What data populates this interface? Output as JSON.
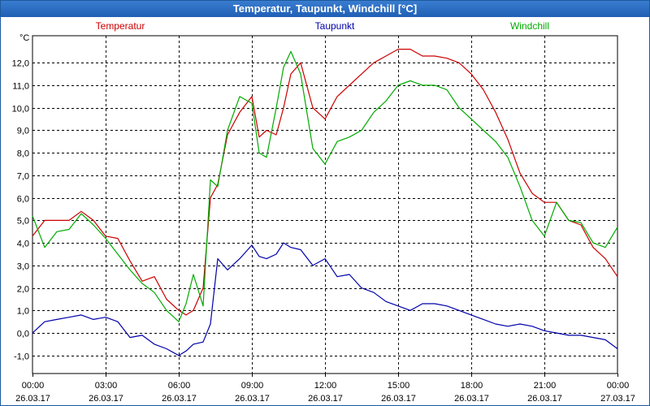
{
  "window": {
    "title": "Temperatur, Taupunkt, Windchill [°C]"
  },
  "chart_data": {
    "type": "line",
    "title": "Temperatur, Taupunkt, Windchill [°C]",
    "ylabel": "°C",
    "ylim": [
      -1.8,
      13.2
    ],
    "xlim": [
      0,
      24
    ],
    "grid": true,
    "y_ticks": [
      {
        "value": -1.0,
        "label": "-1,0"
      },
      {
        "value": 0.0,
        "label": "0,0"
      },
      {
        "value": 1.0,
        "label": "1,0"
      },
      {
        "value": 2.0,
        "label": "2,0"
      },
      {
        "value": 3.0,
        "label": "3,0"
      },
      {
        "value": 4.0,
        "label": "4,0"
      },
      {
        "value": 5.0,
        "label": "5,0"
      },
      {
        "value": 6.0,
        "label": "6,0"
      },
      {
        "value": 7.0,
        "label": "7,0"
      },
      {
        "value": 8.0,
        "label": "8,0"
      },
      {
        "value": 9.0,
        "label": "9,0"
      },
      {
        "value": 10.0,
        "label": "10,0"
      },
      {
        "value": 11.0,
        "label": "11,0"
      },
      {
        "value": 12.0,
        "label": "12,0"
      }
    ],
    "x_ticks": [
      {
        "value": 0,
        "time": "00:00",
        "date": "26.03.17"
      },
      {
        "value": 3,
        "time": "03:00",
        "date": "26.03.17"
      },
      {
        "value": 6,
        "time": "06:00",
        "date": "26.03.17"
      },
      {
        "value": 9,
        "time": "09:00",
        "date": "26.03.17"
      },
      {
        "value": 12,
        "time": "12:00",
        "date": "26.03.17"
      },
      {
        "value": 15,
        "time": "15:00",
        "date": "26.03.17"
      },
      {
        "value": 18,
        "time": "18:00",
        "date": "26.03.17"
      },
      {
        "value": 21,
        "time": "21:00",
        "date": "26.03.17"
      },
      {
        "value": 24,
        "time": "00:00",
        "date": "27.03.17"
      }
    ],
    "series": [
      {
        "name": "Temperatur",
        "color": "#cc0000",
        "x": [
          0,
          0.5,
          1,
          1.5,
          2,
          2.5,
          3,
          3.5,
          4,
          4.5,
          5,
          5.5,
          6,
          6.3,
          6.6,
          7,
          7.3,
          7.6,
          8,
          8.5,
          9,
          9.3,
          9.6,
          10,
          10.3,
          10.6,
          11,
          11.5,
          12,
          12.5,
          13,
          13.5,
          14,
          14.5,
          15,
          15.5,
          16,
          16.5,
          17,
          17.5,
          18,
          18.5,
          19,
          19.5,
          20,
          20.5,
          21,
          21.5,
          22,
          22.5,
          23,
          23.5,
          24
        ],
        "values": [
          4.3,
          5.0,
          5.0,
          5.0,
          5.4,
          5.0,
          4.3,
          4.2,
          3.2,
          2.3,
          2.5,
          1.5,
          1.0,
          0.8,
          1.0,
          2.0,
          6.0,
          6.6,
          8.8,
          9.8,
          10.5,
          8.7,
          9.0,
          8.8,
          10.0,
          11.5,
          12.0,
          10.0,
          9.5,
          10.5,
          11.0,
          11.5,
          12.0,
          12.3,
          12.6,
          12.6,
          12.3,
          12.3,
          12.2,
          12.0,
          11.5,
          10.8,
          9.8,
          8.6,
          7.1,
          6.2,
          5.8,
          5.8,
          5.0,
          4.8,
          3.8,
          3.3,
          2.5
        ]
      },
      {
        "name": "Taupunkt",
        "color": "#0000aa",
        "x": [
          0,
          0.5,
          1,
          1.5,
          2,
          2.5,
          3,
          3.5,
          4,
          4.5,
          5,
          5.5,
          6,
          6.3,
          6.6,
          7,
          7.3,
          7.6,
          8,
          8.5,
          9,
          9.3,
          9.6,
          10,
          10.3,
          10.6,
          11,
          11.5,
          12,
          12.5,
          13,
          13.5,
          14,
          14.5,
          15,
          15.5,
          16,
          16.5,
          17,
          17.5,
          18,
          18.5,
          19,
          19.5,
          20,
          20.5,
          21,
          21.5,
          22,
          22.5,
          23,
          23.5,
          24
        ],
        "values": [
          0.0,
          0.5,
          0.6,
          0.7,
          0.8,
          0.6,
          0.7,
          0.5,
          -0.2,
          -0.1,
          -0.5,
          -0.7,
          -1.0,
          -0.8,
          -0.5,
          -0.4,
          0.4,
          3.3,
          2.8,
          3.3,
          3.9,
          3.4,
          3.3,
          3.5,
          4.0,
          3.8,
          3.7,
          3.0,
          3.3,
          2.5,
          2.6,
          2.0,
          1.8,
          1.4,
          1.2,
          1.0,
          1.3,
          1.3,
          1.2,
          1.0,
          0.8,
          0.6,
          0.4,
          0.3,
          0.4,
          0.3,
          0.1,
          0.0,
          -0.1,
          -0.1,
          -0.2,
          -0.3,
          -0.7
        ]
      },
      {
        "name": "Windchill",
        "color": "#00aa00",
        "x": [
          0,
          0.5,
          1,
          1.5,
          2,
          2.5,
          3,
          3.5,
          4,
          4.5,
          5,
          5.5,
          6,
          6.3,
          6.6,
          7,
          7.3,
          7.6,
          8,
          8.5,
          9,
          9.3,
          9.6,
          10,
          10.3,
          10.6,
          11,
          11.5,
          12,
          12.5,
          13,
          13.5,
          14,
          14.5,
          15,
          15.5,
          16,
          16.5,
          17,
          17.5,
          18,
          18.5,
          19,
          19.5,
          20,
          20.5,
          21,
          21.5,
          22,
          22.5,
          23,
          23.5,
          24
        ],
        "values": [
          5.2,
          3.8,
          4.5,
          4.6,
          5.3,
          4.8,
          4.2,
          3.5,
          2.8,
          2.2,
          1.8,
          1.0,
          0.5,
          1.3,
          2.6,
          1.2,
          6.8,
          6.5,
          9.0,
          10.5,
          10.2,
          8.0,
          7.8,
          10.0,
          11.8,
          12.5,
          11.5,
          8.2,
          7.5,
          8.5,
          8.7,
          9.0,
          9.8,
          10.3,
          11.0,
          11.2,
          11.0,
          11.0,
          10.8,
          10.0,
          9.5,
          9.0,
          8.5,
          7.8,
          6.5,
          5.0,
          4.3,
          5.8,
          5.0,
          4.9,
          4.0,
          3.8,
          4.7
        ]
      }
    ]
  }
}
